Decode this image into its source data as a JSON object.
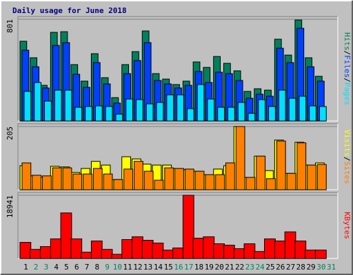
{
  "chart_data": {
    "type": "bar",
    "title": "Daily usage for June 2018",
    "categories": [
      "1",
      "2",
      "3",
      "4",
      "5",
      "6",
      "7",
      "8",
      "9",
      "10",
      "11",
      "12",
      "13",
      "14",
      "15",
      "16",
      "17",
      "18",
      "19",
      "20",
      "21",
      "22",
      "23",
      "24",
      "25",
      "26",
      "27",
      "28",
      "29",
      "30",
      "31"
    ],
    "category_colors": [
      "#000000",
      "#00805c",
      "#00805c",
      "#000000",
      "#000000",
      "#000000",
      "#000000",
      "#000000",
      "#00805c",
      "#00805c",
      "#000000",
      "#000000",
      "#000000",
      "#000000",
      "#000000",
      "#00805c",
      "#00805c",
      "#000000",
      "#000000",
      "#000000",
      "#000000",
      "#000000",
      "#00805c",
      "#00805c",
      "#000000",
      "#000000",
      "#000000",
      "#000000",
      "#000000",
      "#00805c",
      "#00805c"
    ],
    "legend_separator": "/",
    "panels": [
      {
        "ylim": [
          0,
          801
        ],
        "yticks": [
          801
        ],
        "series": [
          {
            "name": "Hits",
            "color": "#00805c",
            "values": [
              628,
              498,
              281,
              698,
              703,
              444,
              314,
              530,
              341,
              184,
              444,
              546,
              709,
              373,
              330,
              287,
              314,
              465,
              422,
              508,
              454,
              395,
              233,
              254,
              243,
              644,
              519,
              795,
              498,
              352,
              0
            ]
          },
          {
            "name": "Files",
            "color": "#0040ff",
            "values": [
              557,
              427,
              260,
              595,
              617,
              368,
              265,
              460,
              292,
              141,
              373,
              476,
              617,
              319,
              292,
              260,
              281,
              390,
              303,
              384,
              373,
              319,
              179,
              211,
              195,
              573,
              460,
              730,
              427,
              314,
              0
            ]
          },
          {
            "name": "Pages",
            "color": "#00e0ff",
            "values": [
              233,
              303,
              157,
              243,
              243,
              108,
              114,
              119,
              114,
              54,
              173,
              168,
              135,
              146,
              206,
              206,
              97,
              287,
              173,
              108,
              108,
              146,
              60,
              168,
              114,
              243,
              179,
              195,
              119,
              114,
              0
            ]
          }
        ]
      },
      {
        "ylim": [
          0,
          205
        ],
        "yticks": [
          205
        ],
        "series": [
          {
            "name": "Visits",
            "color": "#ffff00",
            "values": [
              78,
              45,
              40,
              76,
              74,
              56,
              69,
              92,
              80,
              33,
              107,
              100,
              83,
              80,
              80,
              69,
              65,
              60,
              49,
              67,
              78,
              205,
              40,
              109,
              62,
              161,
              53,
              154,
              80,
              87,
              0
            ]
          },
          {
            "name": "Sites",
            "color": "#ff8000",
            "values": [
              87,
              47,
              45,
              71,
              71,
              51,
              51,
              69,
              51,
              33,
              67,
              92,
              60,
              31,
              71,
              69,
              67,
              60,
              49,
              49,
              87,
              205,
              40,
              109,
              36,
              158,
              53,
              152,
              80,
              82,
              0
            ]
          }
        ]
      },
      {
        "ylim": [
          0,
          18941
        ],
        "yticks": [
          18941
        ],
        "series": [
          {
            "name": "KBytes",
            "color": "#ff0000",
            "values": [
              4830,
              2730,
              3570,
              5880,
              13650,
              5880,
              1890,
              5250,
              2730,
              1260,
              5670,
              6510,
              5460,
              4620,
              2520,
              3150,
              18941,
              6090,
              6510,
              4410,
              3990,
              2940,
              4410,
              2100,
              5880,
              5250,
              7980,
              5250,
              2520,
              2520,
              0
            ]
          }
        ]
      }
    ]
  }
}
